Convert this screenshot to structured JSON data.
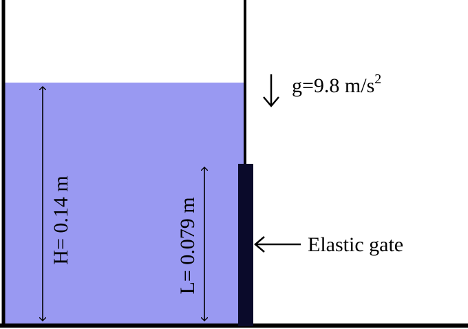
{
  "diagram": {
    "gravity": {
      "prefix": "g=9.8 m/s",
      "exponent": "2"
    },
    "water_height": {
      "label": "H= 0.14 m"
    },
    "gate_length": {
      "label": "L= 0.079 m"
    },
    "gate": {
      "label": "Elastic gate"
    },
    "colors": {
      "water": "#9999f2",
      "gate": "#0a0a2a",
      "walls": "#000000"
    }
  }
}
